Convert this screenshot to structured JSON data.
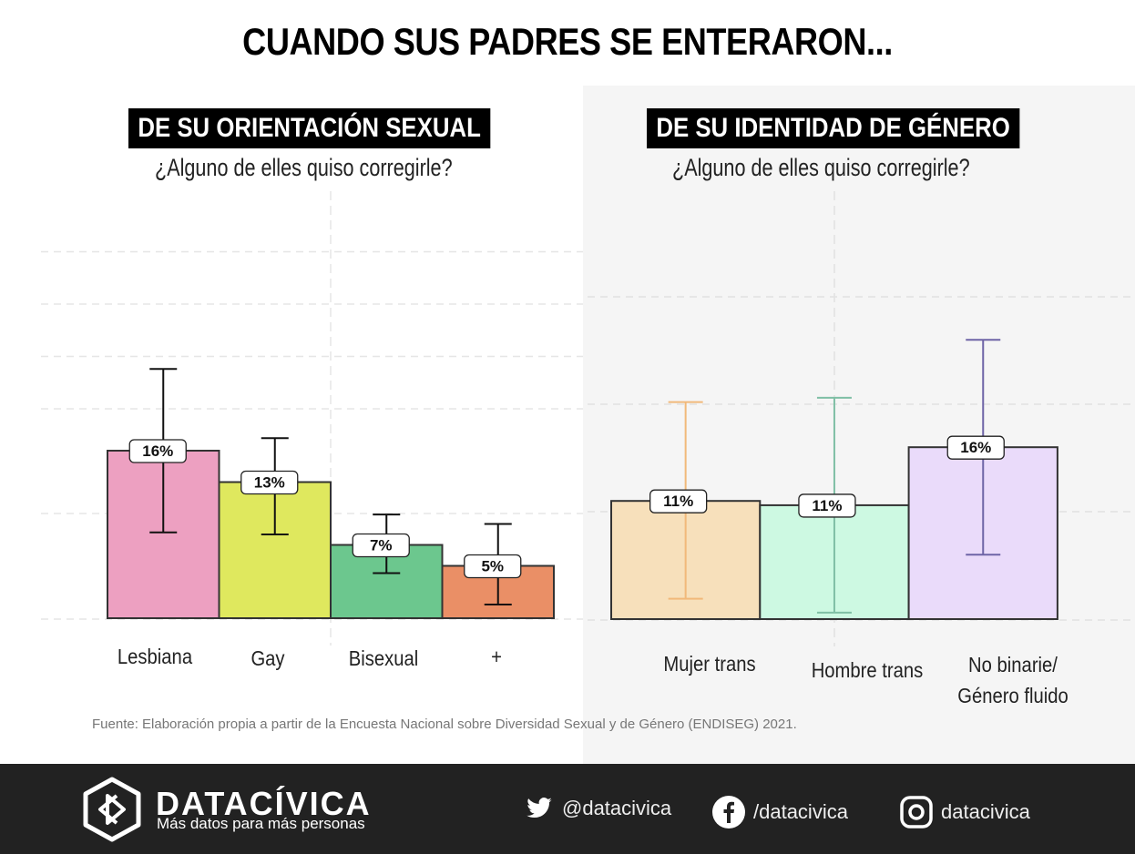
{
  "title": "CUANDO SUS PADRES SE ENTERARON...",
  "source": "Fuente: Elaboración propia a partir de la Encuesta Nacional sobre Diversidad Sexual y de Género (ENDISEG) 2021.",
  "footer": {
    "brand": "DATACÍVICA",
    "tagline": "Más datos para más personas",
    "logo_icon": "datacivica-hexagon-logo-icon",
    "twitter": {
      "icon": "twitter-bird-icon",
      "handle": "@datacivica"
    },
    "facebook": {
      "icon": "facebook-icon",
      "handle": "/datacivica"
    },
    "instagram": {
      "icon": "instagram-icon",
      "handle": "datacivica"
    },
    "background": "#222222"
  },
  "chart_data": [
    {
      "type": "bar",
      "title": "DE SU ORIENTACIÓN SEXUAL",
      "subtitle": "¿Alguno de elles quiso corregirle?",
      "xlabel": "",
      "ylabel": "",
      "ylim": [
        0,
        35
      ],
      "grid": true,
      "gridlines": [
        10,
        20,
        25,
        30,
        35
      ],
      "categories": [
        "Lesbiana",
        "Gay",
        "Bisexual",
        "+"
      ],
      "values": [
        16,
        13,
        7,
        5
      ],
      "data_labels": [
        "16%",
        "13%",
        "7%",
        "5%"
      ],
      "error_low": [
        8.2,
        8.0,
        4.3,
        1.3
      ],
      "error_high": [
        23.8,
        17.2,
        9.9,
        9.0
      ],
      "colors": [
        "#eda0c1",
        "#dfe85e",
        "#6cc78e",
        "#ea8f66"
      ],
      "error_colors": [
        "#111111",
        "#111111",
        "#111111",
        "#111111"
      ],
      "background": "#ffffff"
    },
    {
      "type": "bar",
      "title": "DE SU IDENTIDAD DE GÉNERO",
      "subtitle": "¿Alguno de elles quiso corregirle?",
      "xlabel": "",
      "ylabel": "",
      "ylim": [
        0,
        30
      ],
      "grid": true,
      "gridlines": [
        10,
        20,
        30
      ],
      "categories": [
        "Mujer trans",
        "Hombre trans",
        "No binarie/\nGénero fluido"
      ],
      "values": [
        11,
        10.6,
        16
      ],
      "data_labels": [
        "11%",
        "11%",
        "16%"
      ],
      "error_low": [
        1.9,
        0.6,
        6.0
      ],
      "error_high": [
        20.2,
        20.6,
        26.0
      ],
      "colors": [
        "#f7e0bb",
        "#cdf9e2",
        "#eadbfa"
      ],
      "error_colors": [
        "#f1b97a",
        "#7fbfa5",
        "#6e64a6"
      ],
      "background": "#f5f5f5"
    }
  ]
}
